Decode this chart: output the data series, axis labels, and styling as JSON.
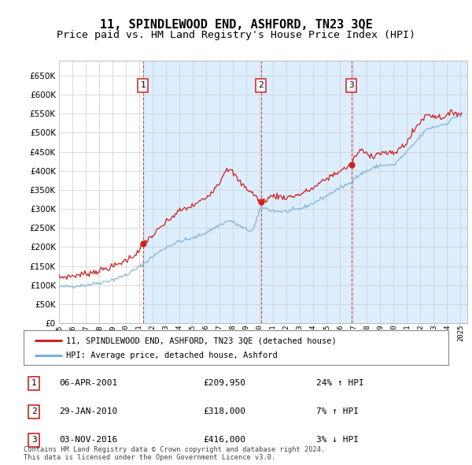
{
  "title": "11, SPINDLEWOOD END, ASHFORD, TN23 3QE",
  "subtitle": "Price paid vs. HM Land Registry's House Price Index (HPI)",
  "title_fontsize": 11,
  "subtitle_fontsize": 9.5,
  "ylabel_values": [
    0,
    50000,
    100000,
    150000,
    200000,
    250000,
    300000,
    350000,
    400000,
    450000,
    500000,
    550000,
    600000,
    650000
  ],
  "ylim": [
    0,
    690000
  ],
  "xlim_start": 1995.0,
  "xlim_end": 2025.5,
  "x_tick_years": [
    1995,
    1996,
    1997,
    1998,
    1999,
    2000,
    2001,
    2002,
    2003,
    2004,
    2005,
    2006,
    2007,
    2008,
    2009,
    2010,
    2011,
    2012,
    2013,
    2014,
    2015,
    2016,
    2017,
    2018,
    2019,
    2020,
    2021,
    2022,
    2023,
    2024,
    2025
  ],
  "hpi_color": "#7bafd4",
  "price_color": "#cc2222",
  "vline_color": "#cc3333",
  "shade_color": "#ddeeff",
  "grid_color": "#cccccc",
  "background_color": "#ffffff",
  "sale_points": [
    {
      "year": 2001.27,
      "price": 209950,
      "label": "1"
    },
    {
      "year": 2010.08,
      "price": 318000,
      "label": "2"
    },
    {
      "year": 2016.84,
      "price": 416000,
      "label": "3"
    }
  ],
  "legend_entries": [
    {
      "label": "11, SPINDLEWOOD END, ASHFORD, TN23 3QE (detached house)",
      "color": "#cc2222"
    },
    {
      "label": "HPI: Average price, detached house, Ashford",
      "color": "#7bafd4"
    }
  ],
  "table_rows": [
    {
      "num": "1",
      "date": "06-APR-2001",
      "price": "£209,950",
      "change": "24% ↑ HPI"
    },
    {
      "num": "2",
      "date": "29-JAN-2010",
      "price": "£318,000",
      "change": "7% ↑ HPI"
    },
    {
      "num": "3",
      "date": "03-NOV-2016",
      "price": "£416,000",
      "change": "3% ↓ HPI"
    }
  ],
  "footer": "Contains HM Land Registry data © Crown copyright and database right 2024.\nThis data is licensed under the Open Government Licence v3.0."
}
